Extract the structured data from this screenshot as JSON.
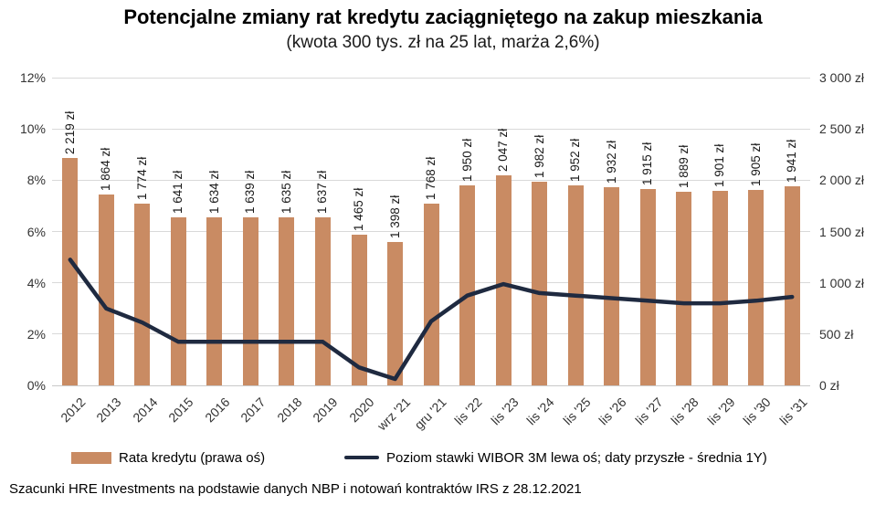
{
  "title": "Potencjalne zmiany rat kredytu zaciągniętego na zakup mieszkania",
  "subtitle": "(kwota 300 tys. zł na 25 lat, marża 2,6%)",
  "source_note": "Szacunki HRE Investments na podstawie danych NBP i notowań kontraktów IRS z 28.12.2021",
  "colors": {
    "bar": "#C98B63",
    "line": "#1F2A40",
    "grid": "#D9D9D9",
    "axis_line": "#C9C9C9",
    "tick_text": "#333333"
  },
  "legend": [
    {
      "label": "Rata kredytu (prawa oś)",
      "marker": "bar-swatch",
      "color": "#C98B63"
    },
    {
      "label": "Poziom stawki WIBOR 3M lewa oś; daty przyszłe - średnia 1Y)",
      "marker": "line-swatch",
      "color": "#1F2A40"
    }
  ],
  "chart_data": {
    "type": "bar+line combo",
    "title": "Potencjalne zmiany rat kredytu zaciągniętego na zakup mieszkania",
    "subtitle": "(kwota 300 tys. zł na 25 lat, marża 2,6%)",
    "grid": true,
    "legend_position": "bottom",
    "categories": [
      "2012",
      "2013",
      "2014",
      "2015",
      "2016",
      "2017",
      "2018",
      "2019",
      "2020",
      "wrz '21",
      "gru '21",
      "lis '22",
      "lis '23",
      "lis '24",
      "lis '25",
      "lis '26",
      "lis '27",
      "lis '28",
      "lis '29",
      "lis '30",
      "lis '31"
    ],
    "left_axis": {
      "unit": "%",
      "min": 0,
      "max": 12,
      "ticks_top_to_bottom": [
        "12%",
        "10%",
        "8%",
        "6%",
        "4%",
        "2%",
        "0%"
      ]
    },
    "right_axis": {
      "unit": "zł",
      "min": 0,
      "max": 3000,
      "ticks_top_to_bottom": [
        "3 000 zł",
        "2 500 zł",
        "2 000 zł",
        "1 500 zł",
        "1 000 zł",
        "500 zł",
        "0 zł"
      ]
    },
    "series": [
      {
        "name": "Rata kredytu (prawa oś)",
        "type": "bar",
        "axis": "right",
        "color": "#C98B63",
        "values": [
          2219,
          1864,
          1774,
          1641,
          1634,
          1639,
          1635,
          1637,
          1465,
          1398,
          1768,
          1950,
          2047,
          1982,
          1952,
          1932,
          1915,
          1889,
          1901,
          1905,
          1941
        ],
        "data_labels": [
          "2 219 zł",
          "1 864 zł",
          "1 774 zł",
          "1 641 zł",
          "1 634 zł",
          "1 639 zł",
          "1 635 zł",
          "1 637 zł",
          "1 465 zł",
          "1 398 zł",
          "1 768 zł",
          "1 950 zł",
          "2 047 zł",
          "1 982 zł",
          "1 952 zł",
          "1 932 zł",
          "1 915 zł",
          "1 889 zł",
          "1 901 zł",
          "1 905 zł",
          "1 941 zł"
        ]
      },
      {
        "name": "Poziom stawki WIBOR 3M lewa oś; daty przyszłe - średnia 1Y)",
        "type": "line",
        "axis": "left",
        "color": "#1F2A40",
        "values": [
          4.9,
          3.0,
          2.45,
          1.7,
          1.7,
          1.7,
          1.7,
          1.7,
          0.7,
          0.25,
          2.5,
          3.5,
          3.95,
          3.6,
          3.5,
          3.4,
          3.3,
          3.2,
          3.2,
          3.3,
          3.45
        ]
      }
    ]
  }
}
